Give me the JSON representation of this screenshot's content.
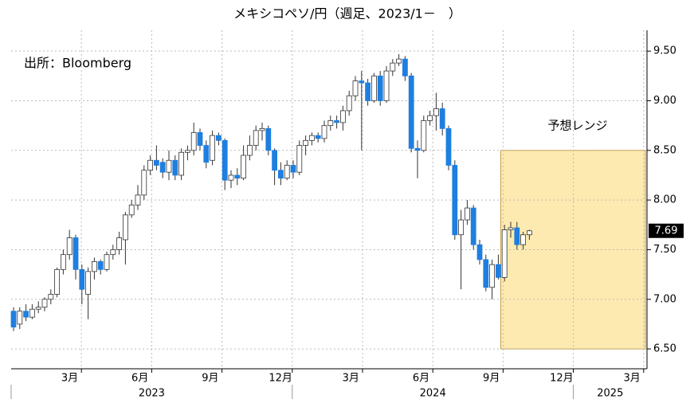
{
  "chart_data": {
    "type": "candlestick",
    "title": "メキシコペソ/円（週足、2023/1－　）",
    "source": "出所：Bloomberg",
    "open": [
      6.88,
      6.75,
      6.88,
      6.82,
      6.9,
      6.92,
      7.0,
      7.05,
      7.3,
      7.45,
      7.62,
      7.3,
      7.05,
      7.28,
      7.38,
      7.3,
      7.45,
      7.5,
      7.6,
      7.85,
      7.95,
      8.05,
      8.3,
      8.4,
      8.38,
      8.28,
      8.4,
      8.25,
      8.48,
      8.5,
      8.68,
      8.55,
      8.4,
      8.65,
      8.6,
      8.2,
      8.25,
      8.22,
      8.45,
      8.55,
      8.7,
      8.72,
      8.5,
      8.3,
      8.22,
      8.35,
      8.28,
      8.55,
      8.6,
      8.65,
      8.62,
      8.75,
      8.8,
      8.78,
      8.9,
      9.05,
      9.2,
      9.18,
      9.0,
      9.25,
      9.0,
      9.3,
      9.38,
      9.42,
      9.25,
      8.52,
      8.5,
      8.8,
      8.85,
      8.92,
      8.72,
      8.35,
      7.65,
      7.8,
      7.92,
      7.55,
      7.4,
      7.12,
      7.35,
      7.22,
      7.7,
      7.72,
      7.55,
      7.65
    ],
    "high": [
      6.92,
      6.92,
      6.95,
      6.95,
      6.98,
      7.02,
      7.1,
      7.32,
      7.5,
      7.7,
      7.65,
      7.35,
      7.32,
      7.42,
      7.4,
      7.48,
      7.55,
      7.68,
      7.88,
      8.0,
      8.15,
      8.35,
      8.45,
      8.55,
      8.42,
      8.5,
      8.45,
      8.52,
      8.55,
      8.78,
      8.72,
      8.6,
      8.7,
      8.68,
      8.62,
      8.3,
      8.32,
      8.55,
      8.65,
      8.75,
      8.78,
      8.75,
      8.52,
      8.38,
      8.4,
      8.4,
      8.6,
      8.65,
      8.68,
      8.68,
      8.8,
      8.85,
      8.85,
      8.95,
      9.1,
      9.25,
      9.3,
      9.22,
      9.28,
      9.3,
      9.35,
      9.42,
      9.47,
      9.45,
      9.28,
      8.6,
      8.85,
      8.9,
      9.08,
      8.98,
      8.75,
      8.4,
      7.9,
      8.0,
      7.95,
      7.6,
      7.45,
      7.4,
      7.45,
      7.75,
      7.78,
      7.78,
      7.68,
      7.7
    ],
    "low": [
      6.68,
      6.7,
      6.78,
      6.8,
      6.86,
      6.88,
      6.95,
      7.02,
      7.25,
      7.4,
      7.2,
      6.95,
      6.8,
      7.2,
      7.25,
      7.28,
      7.4,
      7.45,
      7.35,
      7.82,
      7.9,
      8.0,
      8.25,
      8.3,
      8.22,
      8.2,
      8.2,
      8.2,
      8.4,
      8.45,
      8.5,
      8.32,
      8.35,
      8.55,
      8.1,
      8.12,
      8.15,
      8.2,
      8.4,
      8.5,
      8.6,
      8.45,
      8.15,
      8.15,
      8.2,
      8.22,
      8.25,
      8.45,
      8.55,
      8.58,
      8.58,
      8.7,
      8.72,
      8.7,
      8.85,
      9.0,
      8.5,
      8.95,
      8.98,
      8.95,
      8.98,
      9.25,
      9.35,
      9.2,
      8.48,
      8.22,
      8.48,
      8.75,
      8.7,
      8.65,
      8.3,
      7.6,
      7.1,
      7.75,
      7.5,
      7.35,
      7.08,
      7.0,
      7.2,
      7.18,
      7.62,
      7.5,
      7.5,
      7.6
    ],
    "close": [
      6.72,
      6.88,
      6.82,
      6.9,
      6.92,
      7.0,
      7.05,
      7.3,
      7.45,
      7.62,
      7.3,
      7.1,
      7.28,
      7.38,
      7.3,
      7.45,
      7.5,
      7.62,
      7.85,
      7.95,
      8.05,
      8.3,
      8.4,
      8.35,
      8.28,
      8.4,
      8.25,
      8.48,
      8.5,
      8.68,
      8.55,
      8.38,
      8.65,
      8.6,
      8.2,
      8.25,
      8.22,
      8.45,
      8.55,
      8.7,
      8.72,
      8.5,
      8.3,
      8.22,
      8.35,
      8.28,
      8.55,
      8.6,
      8.65,
      8.62,
      8.75,
      8.8,
      8.78,
      8.9,
      9.05,
      9.2,
      9.18,
      9.0,
      9.25,
      9.0,
      9.3,
      9.38,
      9.42,
      9.25,
      8.52,
      8.5,
      8.8,
      8.85,
      8.92,
      8.72,
      8.35,
      7.65,
      7.8,
      7.92,
      7.55,
      7.4,
      7.12,
      7.35,
      7.22,
      7.7,
      7.72,
      7.55,
      7.65,
      7.69
    ],
    "up_color": "#ffffff",
    "down_color": "#1e7fe0",
    "months": [
      "3月",
      "6月",
      "9月",
      "12月",
      "3月",
      "6月",
      "9月",
      "12月",
      "3月"
    ],
    "years": [
      "2023",
      "2024",
      "2025"
    ],
    "forecast_range": {
      "label": "予想レンジ",
      "low": 6.5,
      "high": 8.5,
      "color": "#fdeab0"
    },
    "ylim": [
      6.3,
      9.71
    ],
    "yticks": [
      {
        "value": 6.5,
        "label": "6.50"
      },
      {
        "value": 7,
        "label": "7.00"
      },
      {
        "value": 7.5,
        "label": "7.50"
      },
      {
        "value": 8,
        "label": "8.00"
      },
      {
        "value": 8.5,
        "label": "8.50"
      },
      {
        "value": 9,
        "label": "9.00"
      },
      {
        "value": 9.5,
        "label": "9.50"
      }
    ],
    "grid": true
  }
}
